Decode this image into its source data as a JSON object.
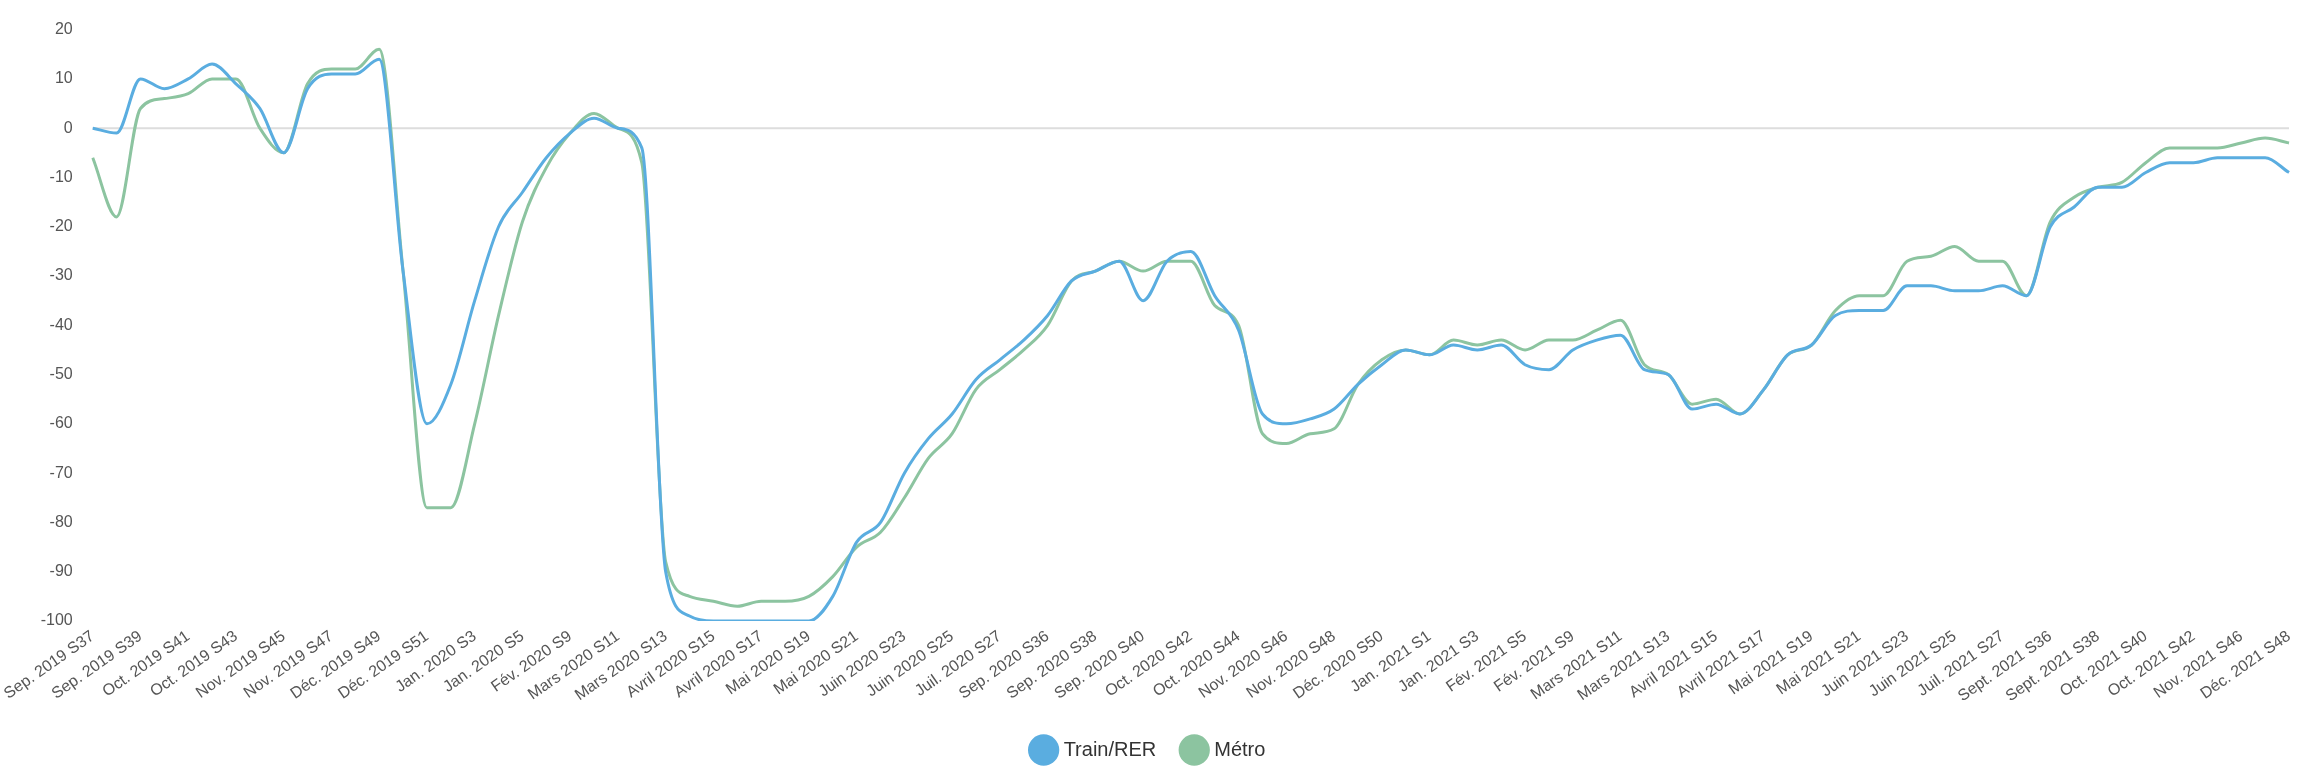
{
  "chart_data": {
    "type": "line",
    "categories": [
      "Sep. 2019 S37",
      null,
      "Sep. 2019 S39",
      null,
      "Oct. 2019 S41",
      null,
      "Oct. 2019 S43",
      null,
      "Nov. 2019 S45",
      null,
      "Nov. 2019 S47",
      null,
      "Déc. 2019 S49",
      null,
      "Déc. 2019 S51",
      null,
      "Jan. 2020 S3",
      null,
      "Jan. 2020 S5",
      null,
      "Fév. 2020 S9",
      null,
      "Mars 2020 S11",
      null,
      "Mars 2020 S13",
      null,
      "Avril 2020 S15",
      null,
      "Avril 2020 S17",
      null,
      "Mai 2020 S19",
      null,
      "Mai 2020 S21",
      null,
      "Juin 2020 S23",
      null,
      "Juin 2020 S25",
      null,
      "Juil. 2020 S27",
      null,
      "Sep. 2020 S36",
      null,
      "Sep. 2020 S38",
      null,
      "Sep. 2020 S40",
      null,
      "Oct. 2020 S42",
      null,
      "Oct. 2020 S44",
      null,
      "Nov. 2020 S46",
      null,
      "Nov. 2020 S48",
      null,
      "Déc. 2020 S50",
      null,
      "Jan. 2021 S1",
      null,
      "Jan. 2021 S3",
      null,
      "Fév. 2021 S5",
      null,
      "Fév. 2021 S9",
      null,
      "Mars 2021 S11",
      null,
      "Mars 2021 S13",
      null,
      "Avril 2021 S15",
      null,
      "Avril 2021 S17",
      null,
      "Mai 2021 S19",
      null,
      "Mai 2021 S21",
      null,
      "Juin 2021 S23",
      null,
      "Juin 2021 S25",
      null,
      "Juil. 2021 S27",
      null,
      "Sept. 2021 S36",
      null,
      "Sept. 2021 S38",
      null,
      "Oct. 2021 S40",
      null,
      "Oct. 2021 S42",
      null,
      "Nov. 2021 S46",
      null,
      "Déc. 2021 S48"
    ],
    "series": [
      {
        "name": "Train/RER",
        "color": "#5aade0",
        "values": [
          0,
          -1,
          10,
          8,
          10,
          13,
          9,
          4,
          -5,
          8,
          11,
          11,
          14,
          -29,
          -60,
          -52,
          -35,
          -20,
          -13,
          -6,
          -1,
          2,
          0,
          -4,
          -90,
          -99,
          -100,
          -100,
          -100,
          -100,
          -100,
          -95,
          -84,
          -80,
          -70,
          -63,
          -58,
          -51,
          -47,
          -43,
          -38,
          -31,
          -29,
          -27,
          -35,
          -27,
          -25,
          -34,
          -41,
          -58,
          -60,
          -59,
          -57,
          -52,
          -48,
          -45,
          -46,
          -44,
          -45,
          -44,
          -48,
          -49,
          -45,
          -43,
          -42,
          -49,
          -50,
          -57,
          -56,
          -58,
          -53,
          -46,
          -44,
          -38,
          -37,
          -37,
          -32,
          -32,
          -33,
          -33,
          -32,
          -34,
          -20,
          -16,
          -12,
          -12,
          -9,
          -7,
          -7,
          -6,
          -6,
          -6,
          -9
        ]
      },
      {
        "name": "Métro",
        "color": "#8cc4a0",
        "values": [
          -6,
          -18,
          4,
          6,
          7,
          10,
          10,
          0,
          -5,
          9,
          12,
          12,
          16,
          -29,
          -77,
          -77,
          -60,
          -38,
          -19,
          -8,
          -1,
          3,
          0,
          -7,
          -88,
          -95,
          -96,
          -97,
          -96,
          -96,
          -95,
          -91,
          -85,
          -82,
          -75,
          -67,
          -62,
          -53,
          -49,
          -45,
          -40,
          -31,
          -29,
          -27,
          -29,
          -27,
          -27,
          -36,
          -40,
          -62,
          -64,
          -62,
          -61,
          -52,
          -47,
          -45,
          -46,
          -43,
          -44,
          -43,
          -45,
          -43,
          -43,
          -41,
          -39,
          -48,
          -50,
          -56,
          -55,
          -58,
          -53,
          -46,
          -44,
          -37,
          -34,
          -34,
          -27,
          -26,
          -24,
          -27,
          -27,
          -34,
          -19,
          -14,
          -12,
          -11,
          -7,
          -4,
          -4,
          -4,
          -3,
          -2,
          -3
        ]
      }
    ],
    "ylim": [
      -100,
      20
    ],
    "yticks": [
      -100,
      -90,
      -80,
      -70,
      -60,
      -50,
      -40,
      -30,
      -20,
      -10,
      0,
      10,
      20
    ],
    "grid": false,
    "ref_lines": [
      {
        "axis": "y",
        "value": 0,
        "color": "#dddddd"
      }
    ],
    "legend": "bottom",
    "marker": "none",
    "line_style": "solid"
  }
}
